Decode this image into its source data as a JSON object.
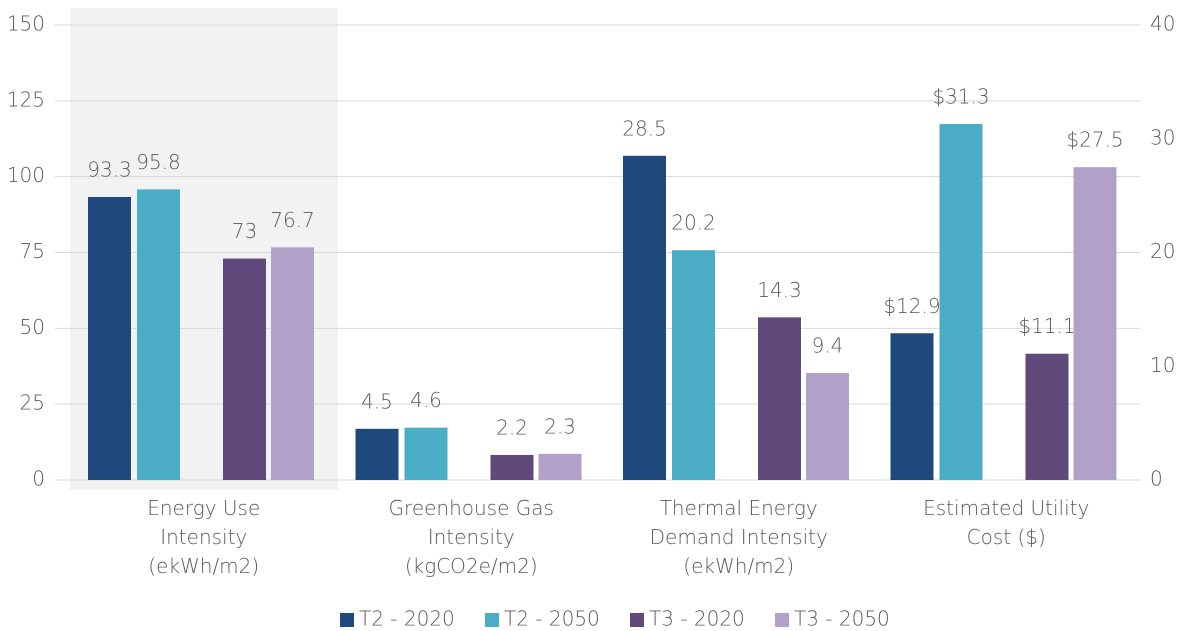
{
  "chart_data": {
    "type": "bar",
    "categories": [
      "Energy Use Intensity (ekWh/m2)",
      "Greenhouse Gas Intensity (kgCO2e/m2)",
      "Thermal Energy Demand Intensity (ekWh/m2)",
      "Estimated Utility Cost ($)"
    ],
    "category_axis": [
      "y",
      "y2",
      "y2",
      "y2"
    ],
    "series": [
      {
        "name": "T2 - 2020",
        "color": "#1f497d",
        "values": [
          93.3,
          4.5,
          28.5,
          12.9
        ],
        "value_labels": [
          "93.3",
          "4.5",
          "28.5",
          "$12.9"
        ]
      },
      {
        "name": "T2 - 2050",
        "color": "#4bacc6",
        "values": [
          95.8,
          4.6,
          20.2,
          31.3
        ],
        "value_labels": [
          "95.8",
          "4.6",
          "20.2",
          "$31.3"
        ]
      },
      {
        "name": "T3 - 2020",
        "color": "#604a7b",
        "values": [
          73,
          2.2,
          14.3,
          11.1
        ],
        "value_labels": [
          "73",
          "2.2",
          "14.3",
          "$11.1"
        ]
      },
      {
        "name": "T3 - 2050",
        "color": "#b1a0c7",
        "values": [
          76.7,
          2.3,
          9.4,
          27.5
        ],
        "value_labels": [
          "76.7",
          "2.3",
          "9.4",
          "$27.5"
        ]
      }
    ],
    "ylim": [
      0,
      150
    ],
    "yticks": [
      0,
      25,
      50,
      75,
      100,
      125,
      150
    ],
    "y2lim": [
      0,
      40
    ],
    "y2ticks": [
      0,
      10,
      20,
      30,
      40
    ],
    "grid": true,
    "legend": "bottom"
  }
}
